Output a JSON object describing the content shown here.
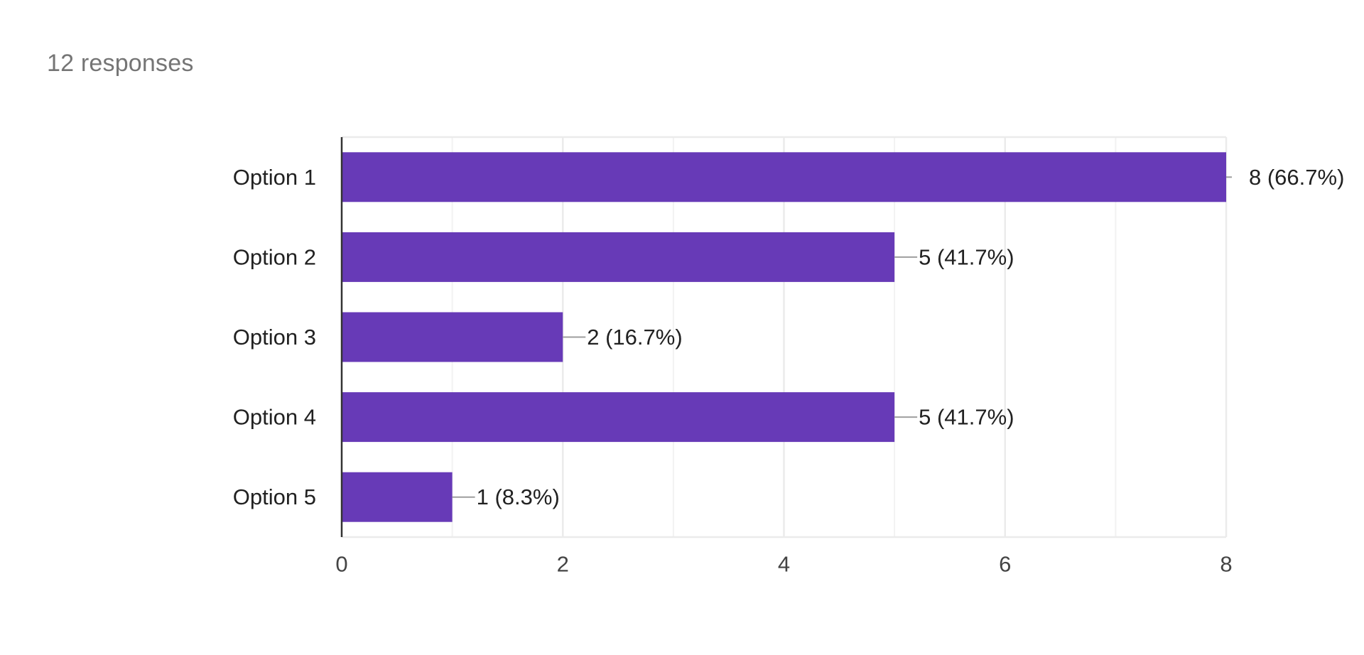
{
  "summary": {
    "responses_text": "12 responses"
  },
  "colors": {
    "bar": "#673ab7",
    "grid": "#ebebeb",
    "axis": "#333333",
    "leader": "#9e9e9e",
    "label_text": "#212121",
    "tick_text": "#444444"
  },
  "chart_data": {
    "type": "bar",
    "orientation": "horizontal",
    "title": "",
    "xlabel": "",
    "ylabel": "",
    "categories": [
      "Option 1",
      "Option 2",
      "Option 3",
      "Option 4",
      "Option 5"
    ],
    "values": [
      8,
      5,
      2,
      5,
      1
    ],
    "data_labels": [
      "8 (66.7%)",
      "5 (41.7%)",
      "2 (16.7%)",
      "5 (41.7%)",
      "1 (8.3%)"
    ],
    "xlim": [
      0,
      8
    ],
    "x_ticks": [
      0,
      2,
      4,
      6,
      8
    ],
    "x_minor_grid": [
      1,
      3,
      5,
      7
    ],
    "grid": true,
    "legend": "none"
  }
}
